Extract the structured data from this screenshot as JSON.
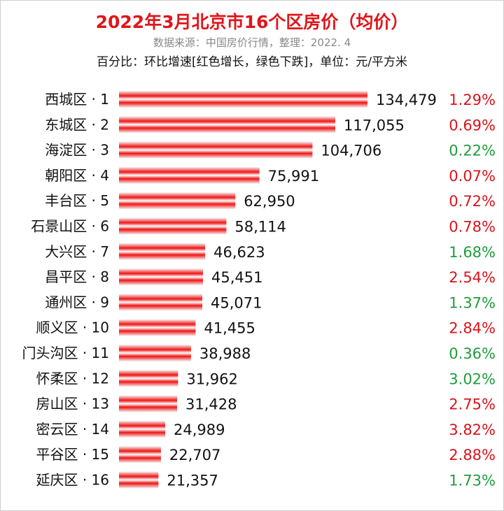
{
  "header": {
    "title": "2022年3月北京市16个区房价（均价）",
    "subtitle": "数据来源：中国房价行情，整理：2022. 4",
    "note": "百分比：环比增速[红色增长，绿色下跌]，单位：元/平方米"
  },
  "colors": {
    "title": "#e0161b",
    "bar": "#ef1414",
    "increase": "#d9141b",
    "decrease": "#1f9c3a"
  },
  "chart_data": {
    "type": "bar",
    "orientation": "horizontal",
    "categories": [
      "西城区 · 1",
      "东城区 · 2",
      "海淀区 · 3",
      "朝阳区 · 4",
      "丰台区 · 5",
      "石景山区 · 6",
      "大兴区 · 7",
      "昌平区 · 8",
      "通州区 · 9",
      "顺义区 · 10",
      "门头沟区 · 11",
      "怀柔区 · 12",
      "房山区 · 13",
      "密云区 · 14",
      "平谷区 · 15",
      "延庆区 · 16"
    ],
    "values": [
      134479,
      117055,
      104706,
      75991,
      62950,
      58114,
      46623,
      45451,
      45071,
      41455,
      38988,
      31962,
      31428,
      24989,
      22707,
      21357
    ],
    "value_labels": [
      "134,479",
      "117,055",
      "104,706",
      "75,991",
      "62,950",
      "58,114",
      "46,623",
      "45,451",
      "45,071",
      "41,455",
      "38,988",
      "31,962",
      "31,428",
      "24,989",
      "22,707",
      "21,357"
    ],
    "mom_change": [
      "1.29%",
      "0.69%",
      "0.22%",
      "0.07%",
      "0.72%",
      "0.78%",
      "1.68%",
      "2.54%",
      "1.37%",
      "2.84%",
      "0.36%",
      "3.02%",
      "2.75%",
      "3.82%",
      "2.88%",
      "1.73%"
    ],
    "mom_direction": [
      "up",
      "up",
      "down",
      "up",
      "up",
      "up",
      "down",
      "up",
      "down",
      "up",
      "down",
      "down",
      "up",
      "up",
      "up",
      "down"
    ],
    "xlim": [
      0,
      134479
    ],
    "grid": false,
    "xlabel": "",
    "ylabel": ""
  }
}
